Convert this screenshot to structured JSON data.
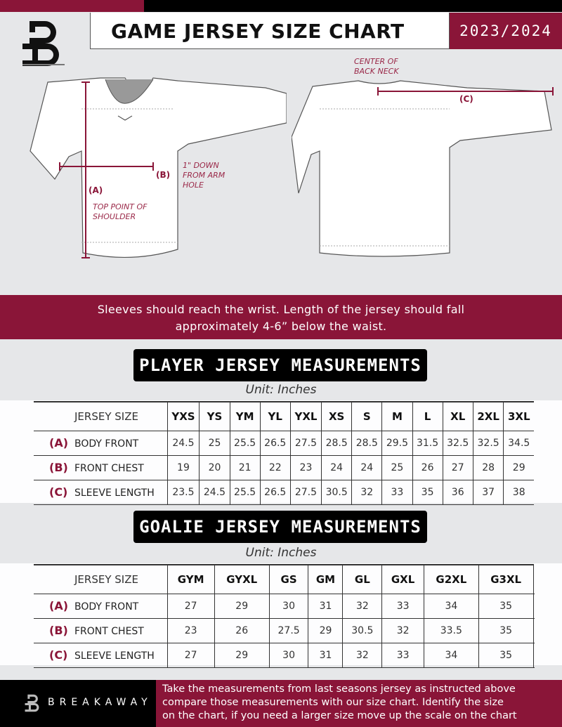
{
  "header": {
    "title": "GAME JERSEY SIZE CHART",
    "season": "2023/2024",
    "logo_letter": "B"
  },
  "diagram": {
    "back_neck_note": "CENTER OF BACK NECK",
    "label_a": "(A)",
    "label_b": "(B)",
    "label_c": "(C)",
    "chest_note": "1\" DOWN FROM ARM HOLE",
    "shoulder_note": "TOP POINT OF SHOULDER"
  },
  "fit_note": {
    "line1": "Sleeves should reach the wrist. Length of the jersey should fall",
    "line2": "approximately 4-6” below the waist."
  },
  "player": {
    "title": "PLAYER JERSEY MEASUREMENTS",
    "unit": "Unit: Inches",
    "size_header": "JERSEY SIZE",
    "sizes": [
      "YXS",
      "YS",
      "YM",
      "YL",
      "YXL",
      "XS",
      "S",
      "M",
      "L",
      "XL",
      "2XL",
      "3XL"
    ],
    "rows": [
      {
        "key": "(A)",
        "label": "BODY FRONT",
        "values": [
          "24.5",
          "25",
          "25.5",
          "26.5",
          "27.5",
          "28.5",
          "28.5",
          "29.5",
          "31.5",
          "32.5",
          "32.5",
          "34.5"
        ]
      },
      {
        "key": "(B)",
        "label": "FRONT CHEST",
        "values": [
          "19",
          "20",
          "21",
          "22",
          "23",
          "24",
          "24",
          "25",
          "26",
          "27",
          "28",
          "29"
        ]
      },
      {
        "key": "(C)",
        "label": "SLEEVE LENGTH",
        "values": [
          "23.5",
          "24.5",
          "25.5",
          "26.5",
          "27.5",
          "30.5",
          "32",
          "33",
          "35",
          "36",
          "37",
          "38"
        ]
      }
    ]
  },
  "goalie": {
    "title": "GOALIE JERSEY MEASUREMENTS",
    "unit": "Unit: Inches",
    "size_header": "JERSEY SIZE",
    "sizes": [
      "GYM",
      "GYXL",
      "GS",
      "GM",
      "GL",
      "GXL",
      "G2XL",
      "G3XL",
      ""
    ],
    "rows": [
      {
        "key": "(A)",
        "label": "BODY FRONT",
        "values": [
          "27",
          "29",
          "30",
          "31",
          "32",
          "33",
          "34",
          "35",
          ""
        ]
      },
      {
        "key": "(B)",
        "label": "FRONT CHEST",
        "values": [
          "23",
          "26",
          "27.5",
          "29",
          "30.5",
          "32",
          "33.5",
          "35",
          ""
        ]
      },
      {
        "key": "(C)",
        "label": "SLEEVE LENGTH",
        "values": [
          "27",
          "29",
          "30",
          "31",
          "32",
          "33",
          "34",
          "35",
          ""
        ]
      }
    ]
  },
  "footer": {
    "brand": "BREAKAWAY",
    "instructions_1": "Take the measurements from last seasons jersey as instructed above",
    "instructions_2": "compare those measurements  with our size chart. Identify the size",
    "instructions_3": "on the chart, if you need a larger size move up the scale on the chart"
  },
  "colors": {
    "accent": "#8a1538",
    "background": "#e6e7e9",
    "dark": "#000000"
  }
}
